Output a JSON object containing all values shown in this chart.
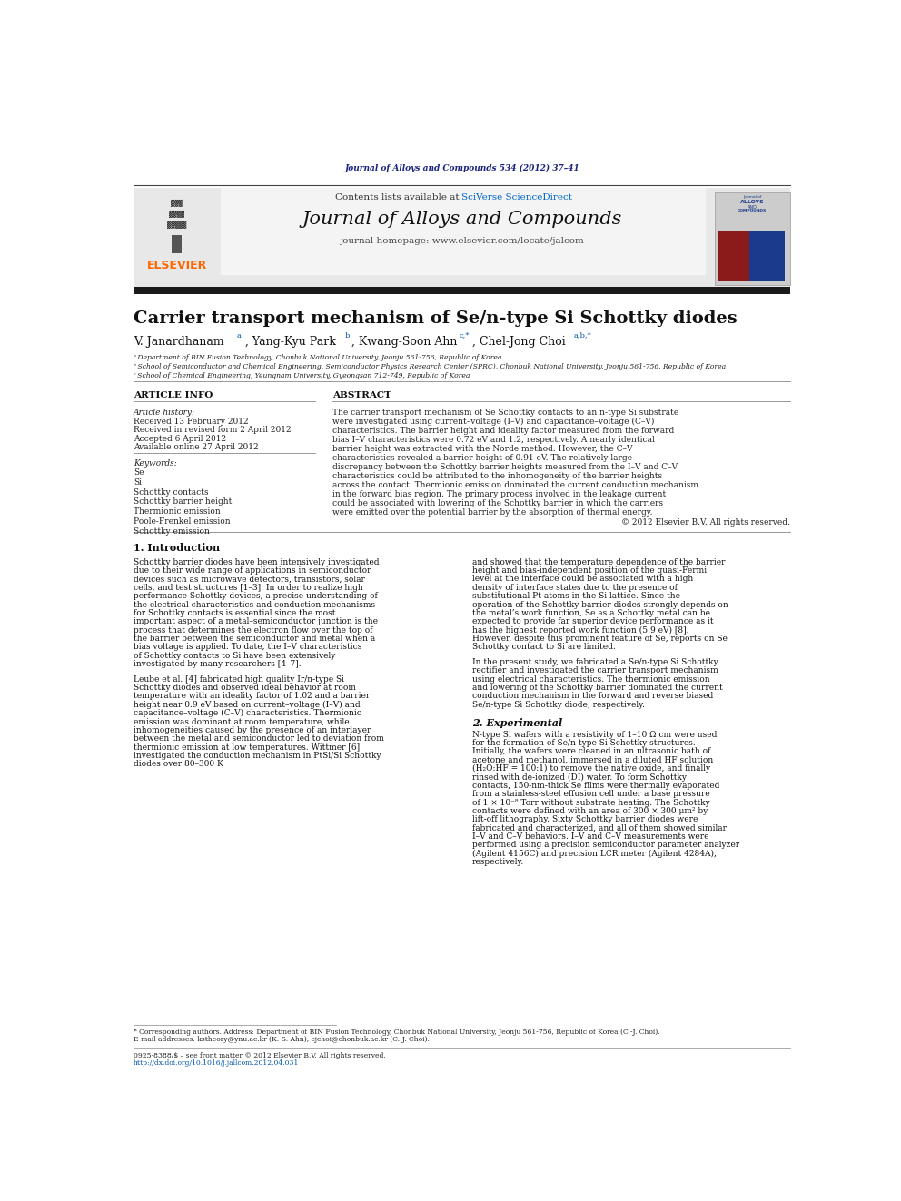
{
  "page_width": 9.92,
  "page_height": 13.23,
  "background_color": "#ffffff",
  "journal_ref": "Journal of Alloys and Compounds 534 (2012) 37–41",
  "journal_ref_color": "#1a237e",
  "header_bg_color": "#e8e8e8",
  "sciverse_color": "#0066cc",
  "journal_title": "Journal of Alloys and Compounds",
  "journal_homepage": "journal homepage: www.elsevier.com/locate/jalcom",
  "elsevier_color": "#ff6600",
  "black_bar_color": "#1a1a1a",
  "article_title": "Carrier transport mechanism of Se/n-type Si Schottky diodes",
  "affil_a": "ᵃ Department of BIN Fusion Technology, Chonbuk National University, Jeonju 561-756, Republic of Korea",
  "affil_b": "ᵇ School of Semiconductor and Chemical Engineering, Semiconductor Physics Research Center (SPRC), Chonbuk National University, Jeonju 561-756, Republic of Korea",
  "affil_c": "ᶜ School of Chemical Engineering, Yeungnam University, Gyeongsan 712-749, Republic of Korea",
  "section_article_info": "ARTICLE INFO",
  "section_abstract": "ABSTRACT",
  "article_history_label": "Article history:",
  "received": "Received 13 February 2012",
  "revised": "Received in revised form 2 April 2012",
  "accepted": "Accepted 6 April 2012",
  "available": "Available online 27 April 2012",
  "keywords_label": "Keywords:",
  "keywords": [
    "Se",
    "Si",
    "Schottky contacts",
    "Schottky barrier height",
    "Thermionic emission",
    "Poole-Frenkel emission",
    "Schottky emission"
  ],
  "abstract_text": "The carrier transport mechanism of Se Schottky contacts to an n-type Si substrate were investigated using current–voltage (I–V) and capacitance–voltage (C–V) characteristics. The barrier height and ideality factor measured from the forward bias I–V characteristics were 0.72 eV and  1.2, respectively. A nearly identical barrier height was extracted with the Norde method. However, the C–V characteristics revealed a barrier height of 0.91 eV. The relatively large discrepancy between the Schottky barrier heights measured from the I–V and C–V characteristics could be attributed to the inhomogeneity of the barrier heights across the contact. Thermionic emission dominated the current conduction mechanism in the forward bias region. The primary process involved in the leakage current could be associated with lowering of the Schottky barrier in which the carriers were emitted over the potential barrier by the absorption of thermal energy.",
  "copyright_text": "© 2012 Elsevier B.V. All rights reserved.",
  "section1_title": "1. Introduction",
  "intro_para1": "Schottky barrier diodes have been intensively investigated due to their wide range of applications in semiconductor devices such as microwave detectors, transistors, solar cells, and test structures [1–3]. In order to realize high performance Schottky devices, a precise understanding of the electrical characteristics and conduction mechanisms for Schottky contacts is essential since the most important aspect of a metal–semiconductor junction is the process that determines the electron flow over the top of the barrier between the semiconductor and metal when a bias voltage is applied. To date, the I–V characteristics of Schottky contacts to Si have been extensively investigated by many researchers [4–7].",
  "intro_para2": "Leube et al. [4] fabricated high quality Ir/n-type Si Schottky diodes and observed ideal behavior at room temperature with an ideality factor of 1.02 and a barrier height near 0.9 eV based on current–voltage (I–V) and capacitance–voltage (C–V) characteristics. Thermionic emission was dominant at room temperature, while inhomogeneities caused by the presence of an interlayer between the metal and semiconductor led to deviation from thermionic emission at low temperatures. Wittmer [6] investigated the conduction mechanism in PtSi/Si Schottky diodes over 80–300 K",
  "right_para1": "and showed that the temperature dependence of the barrier height and bias-independent position of the quasi-Fermi level at the interface could be associated with a high density of interface states due to the presence of substitutional Pt atoms in the Si lattice. Since the operation of the Schottky barrier diodes strongly depends on the metal’s work function, Se as a Schottky metal can be expected to provide far superior device performance as it has the highest reported work function (5.9 eV) [8]. However, despite this prominent feature of Se, reports on Se Schottky contact to Si are limited.",
  "right_para2": "In the present study, we fabricated a Se/n-type Si Schottky rectifier and investigated the carrier transport mechanism using electrical characteristics. The thermionic emission and lowering of the Schottky barrier dominated the current conduction mechanism in the forward and reverse biased Se/n-type Si Schottky diode, respectively.",
  "section2_title": "2. Experimental",
  "exp_text": "N-type Si wafers with a resistivity of 1–10 Ω cm were used for the formation of Se/n-type Si Schottky structures. Initially, the wafers were cleaned in an ultrasonic bath of acetone and methanol, immersed in a diluted HF solution (H₂O:HF = 100:1) to remove the native oxide, and finally rinsed with de-ionized (DI) water. To form Schottky contacts, 150-nm-thick Se films were thermally evaporated from a stainless-steel effusion cell under a base pressure of 1 × 10⁻⁸ Torr without substrate heating. The Schottky contacts were defined with an area of 300 × 300 μm² by lift-off lithography. Sixty Schottky barrier diodes were fabricated and characterized, and all of them showed similar I–V and C–V behaviors. I–V and C–V measurements were performed using a precision semiconductor parameter analyzer (Agilent 4156C) and precision LCR meter (Agilent 4284A), respectively.",
  "footnote_star": "* Corresponding authors. Address: Department of BIN Fusion Technology, Chonbuk National University, Jeonju 561-756, Republic of Korea (C.-J. Choi).",
  "footnote_email": "E-mail addresses: kstheory@ynu.ac.kr (K.-S. Ahn), cjchoi@chonbuk.ac.kr (C.-J. Choi).",
  "issn_text": "0925-8388/$ – see front matter © 2012 Elsevier B.V. All rights reserved.",
  "doi_text": "http://dx.doi.org/10.1016/j.jallcom.2012.04.031"
}
